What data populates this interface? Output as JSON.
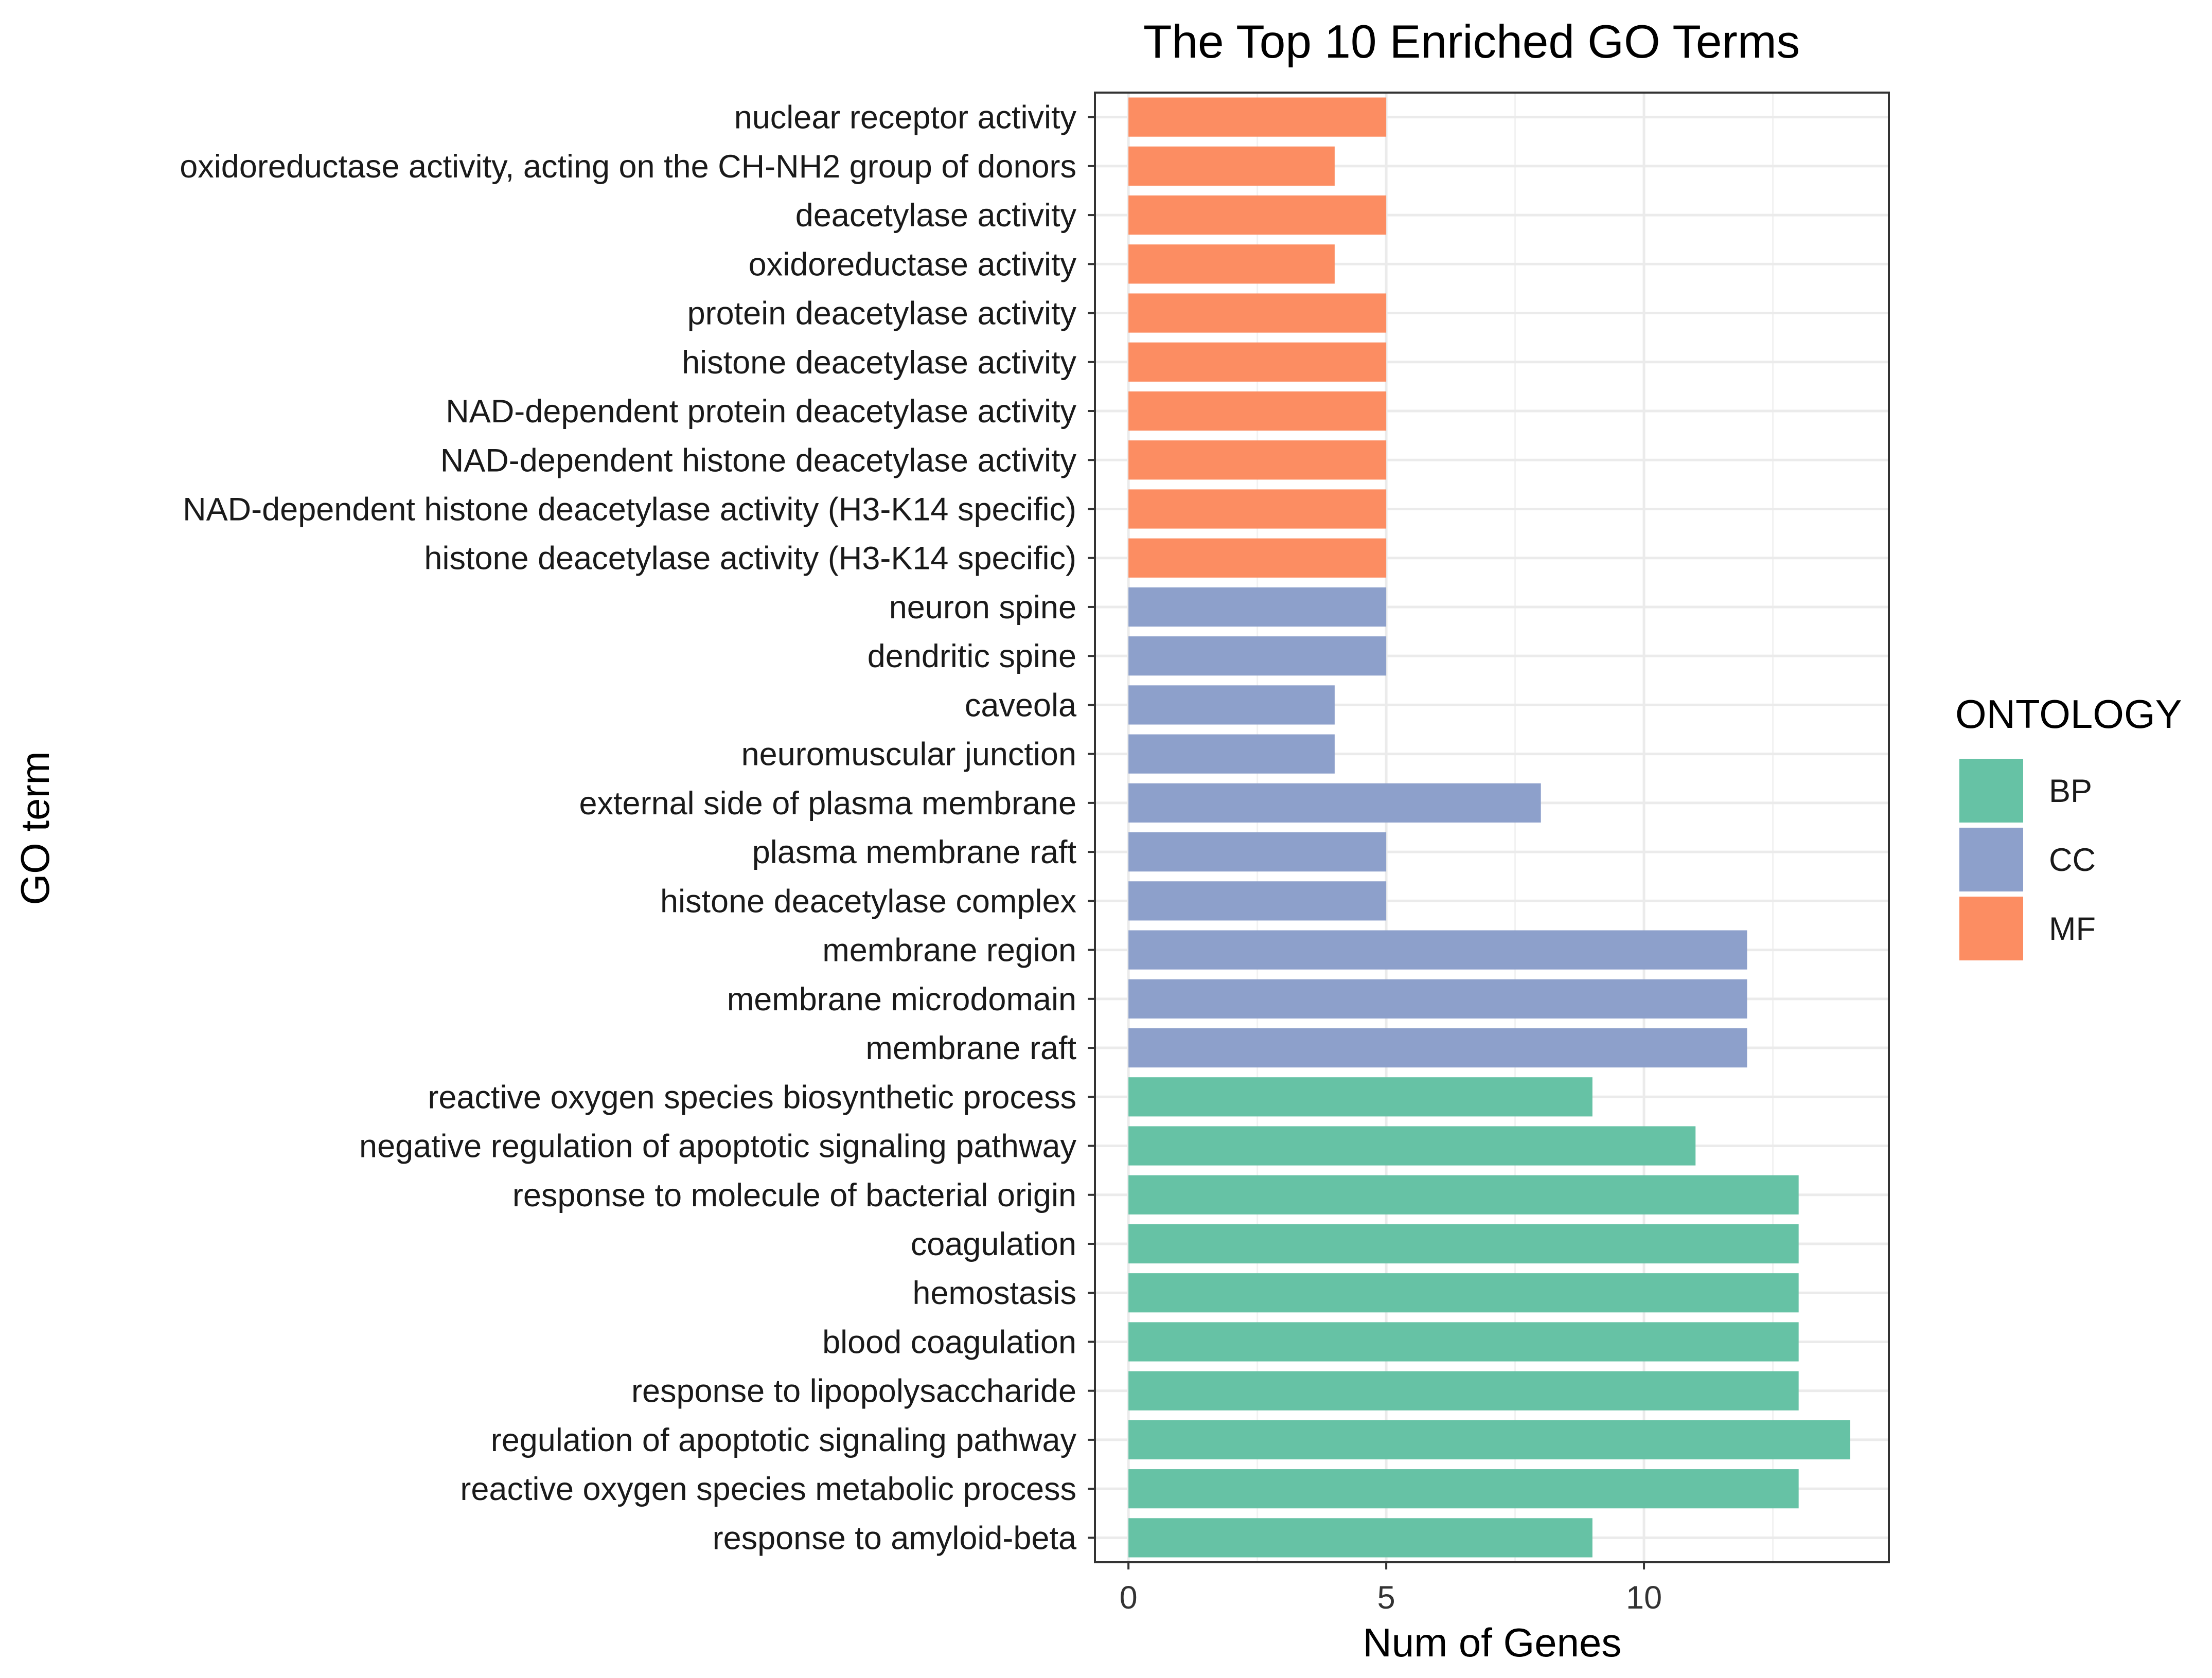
{
  "chart_data": {
    "type": "bar",
    "orientation": "horizontal",
    "title": "The Top 10 Enriched GO Terms",
    "xlabel": "Num of Genes",
    "ylabel": "GO term",
    "xlim": [
      -0.65,
      14.75
    ],
    "xticks": [
      0,
      5,
      10
    ],
    "grid": true,
    "legend": {
      "title": "ONTOLOGY",
      "position": "right",
      "entries": [
        {
          "label": "BP",
          "color": "#66c2a5"
        },
        {
          "label": "CC",
          "color": "#8da0cb"
        },
        {
          "label": "MF",
          "color": "#fc8d62"
        }
      ]
    },
    "bars": [
      {
        "term": "nuclear receptor activity",
        "value": 5,
        "ontology": "MF"
      },
      {
        "term": "oxidoreductase activity, acting on the CH-NH2 group of donors",
        "value": 4,
        "ontology": "MF"
      },
      {
        "term": "deacetylase activity",
        "value": 5,
        "ontology": "MF"
      },
      {
        "term": "oxidoreductase activity",
        "value": 4,
        "ontology": "MF"
      },
      {
        "term": "protein deacetylase activity",
        "value": 5,
        "ontology": "MF"
      },
      {
        "term": "histone deacetylase activity",
        "value": 5,
        "ontology": "MF"
      },
      {
        "term": "NAD-dependent protein deacetylase activity",
        "value": 5,
        "ontology": "MF"
      },
      {
        "term": "NAD-dependent histone deacetylase activity",
        "value": 5,
        "ontology": "MF"
      },
      {
        "term": "NAD-dependent histone deacetylase activity (H3-K14 specific)",
        "value": 5,
        "ontology": "MF"
      },
      {
        "term": "histone deacetylase activity (H3-K14 specific)",
        "value": 5,
        "ontology": "MF"
      },
      {
        "term": "neuron spine",
        "value": 5,
        "ontology": "CC"
      },
      {
        "term": "dendritic spine",
        "value": 5,
        "ontology": "CC"
      },
      {
        "term": "caveola",
        "value": 4,
        "ontology": "CC"
      },
      {
        "term": "neuromuscular junction",
        "value": 4,
        "ontology": "CC"
      },
      {
        "term": "external side of plasma membrane",
        "value": 8,
        "ontology": "CC"
      },
      {
        "term": "plasma membrane raft",
        "value": 5,
        "ontology": "CC"
      },
      {
        "term": "histone deacetylase complex",
        "value": 5,
        "ontology": "CC"
      },
      {
        "term": "membrane region",
        "value": 12,
        "ontology": "CC"
      },
      {
        "term": "membrane microdomain",
        "value": 12,
        "ontology": "CC"
      },
      {
        "term": "membrane raft",
        "value": 12,
        "ontology": "CC"
      },
      {
        "term": "reactive oxygen species biosynthetic process",
        "value": 9,
        "ontology": "BP"
      },
      {
        "term": "negative regulation of apoptotic signaling pathway",
        "value": 11,
        "ontology": "BP"
      },
      {
        "term": "response to molecule of bacterial origin",
        "value": 13,
        "ontology": "BP"
      },
      {
        "term": "coagulation",
        "value": 13,
        "ontology": "BP"
      },
      {
        "term": "hemostasis",
        "value": 13,
        "ontology": "BP"
      },
      {
        "term": "blood coagulation",
        "value": 13,
        "ontology": "BP"
      },
      {
        "term": "response to lipopolysaccharide",
        "value": 13,
        "ontology": "BP"
      },
      {
        "term": "regulation of apoptotic signaling pathway",
        "value": 14,
        "ontology": "BP"
      },
      {
        "term": "reactive oxygen species metabolic process",
        "value": 13,
        "ontology": "BP"
      },
      {
        "term": "response to amyloid-beta",
        "value": 9,
        "ontology": "BP"
      }
    ]
  }
}
